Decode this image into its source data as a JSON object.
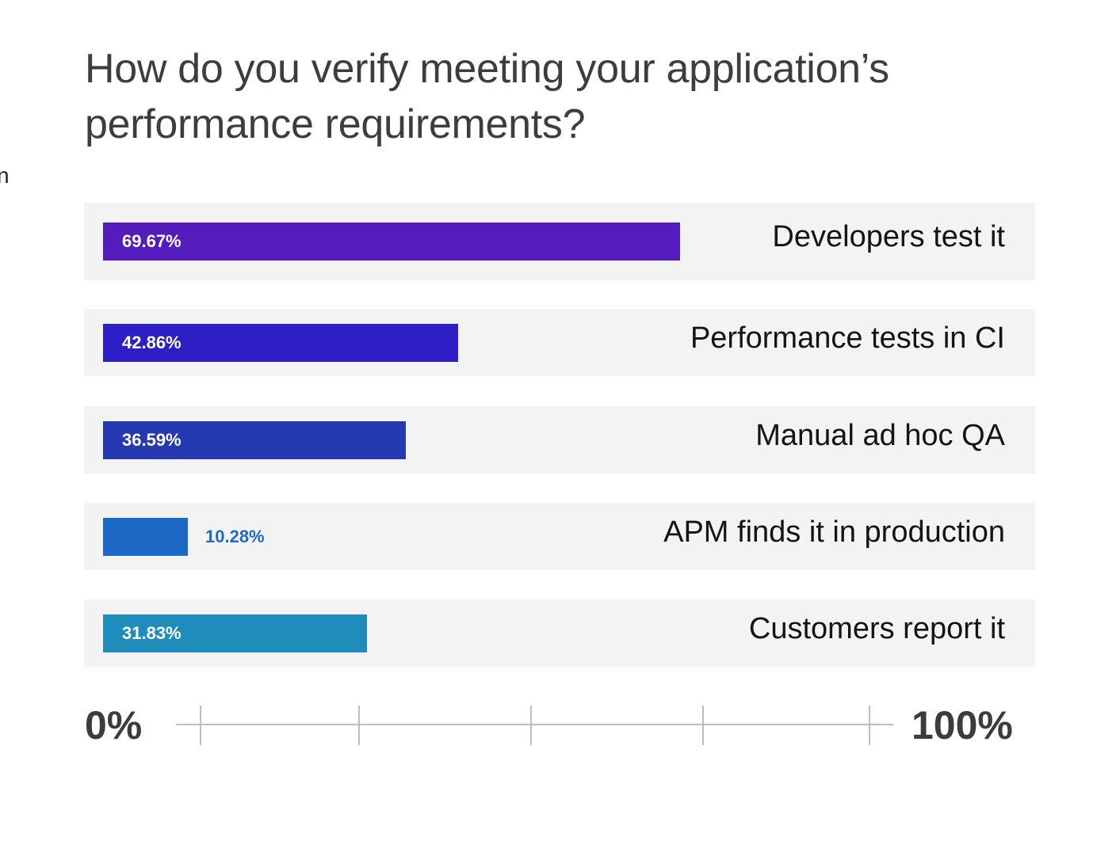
{
  "edge_fragment": "n",
  "chart_data": {
    "type": "bar",
    "orientation": "horizontal",
    "title": "How do you verify meeting your application’s performance requirements?",
    "categories": [
      "Developers test it",
      "Performance tests in CI",
      "Manual ad hoc QA",
      "APM finds it in production",
      "Customers report it"
    ],
    "values": [
      69.67,
      42.86,
      36.59,
      10.28,
      31.83
    ],
    "value_labels": [
      "69.67%",
      "42.86%",
      "36.59%",
      "10.28%",
      "31.83%"
    ],
    "bar_colors": [
      "#541cbd",
      "#2e1ec6",
      "#2539b0",
      "#1f69c6",
      "#1e8dbc"
    ],
    "xlim": [
      0,
      100
    ],
    "axis_min_label": "0%",
    "axis_max_label": "100%",
    "grid": false
  }
}
